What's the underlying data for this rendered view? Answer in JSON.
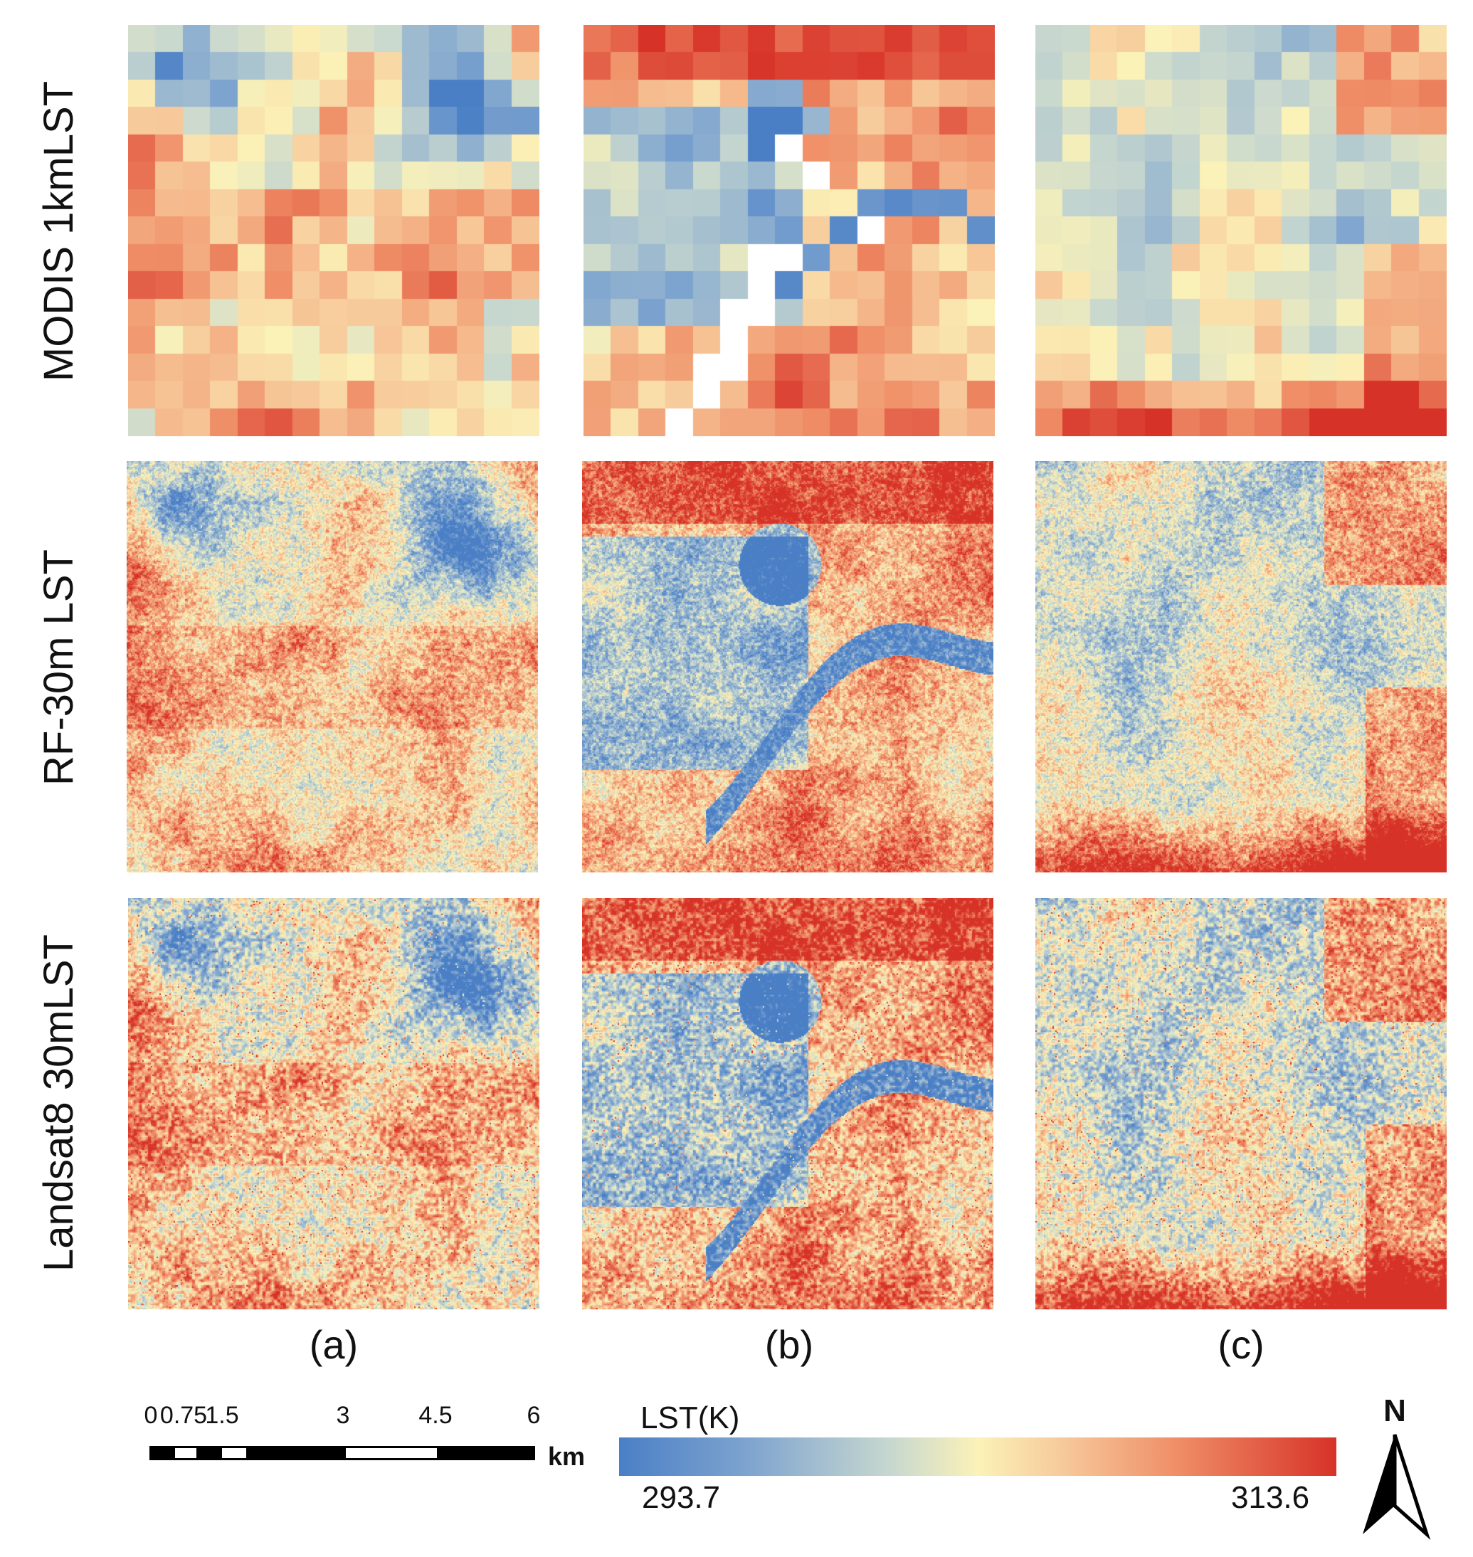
{
  "rows": [
    {
      "label": "MODIS 1kmLST"
    },
    {
      "label": "RF-30m LST"
    },
    {
      "label": "Landsat8 30mLST"
    }
  ],
  "columns": [
    {
      "label": "(a)"
    },
    {
      "label": "(b)"
    },
    {
      "label": "(c)"
    }
  ],
  "scalebar": {
    "ticks": [
      "0",
      "0.75",
      "1.5",
      "3",
      "4.5",
      "6"
    ],
    "unit": "km"
  },
  "legend": {
    "title": "LST(K)",
    "min": "293.7",
    "max": "313.6"
  },
  "north_arrow": {
    "label": "N"
  },
  "colors": {
    "cold": "#4a7fc6",
    "mid": "#fbf2b8",
    "hot": "#d73228"
  }
}
